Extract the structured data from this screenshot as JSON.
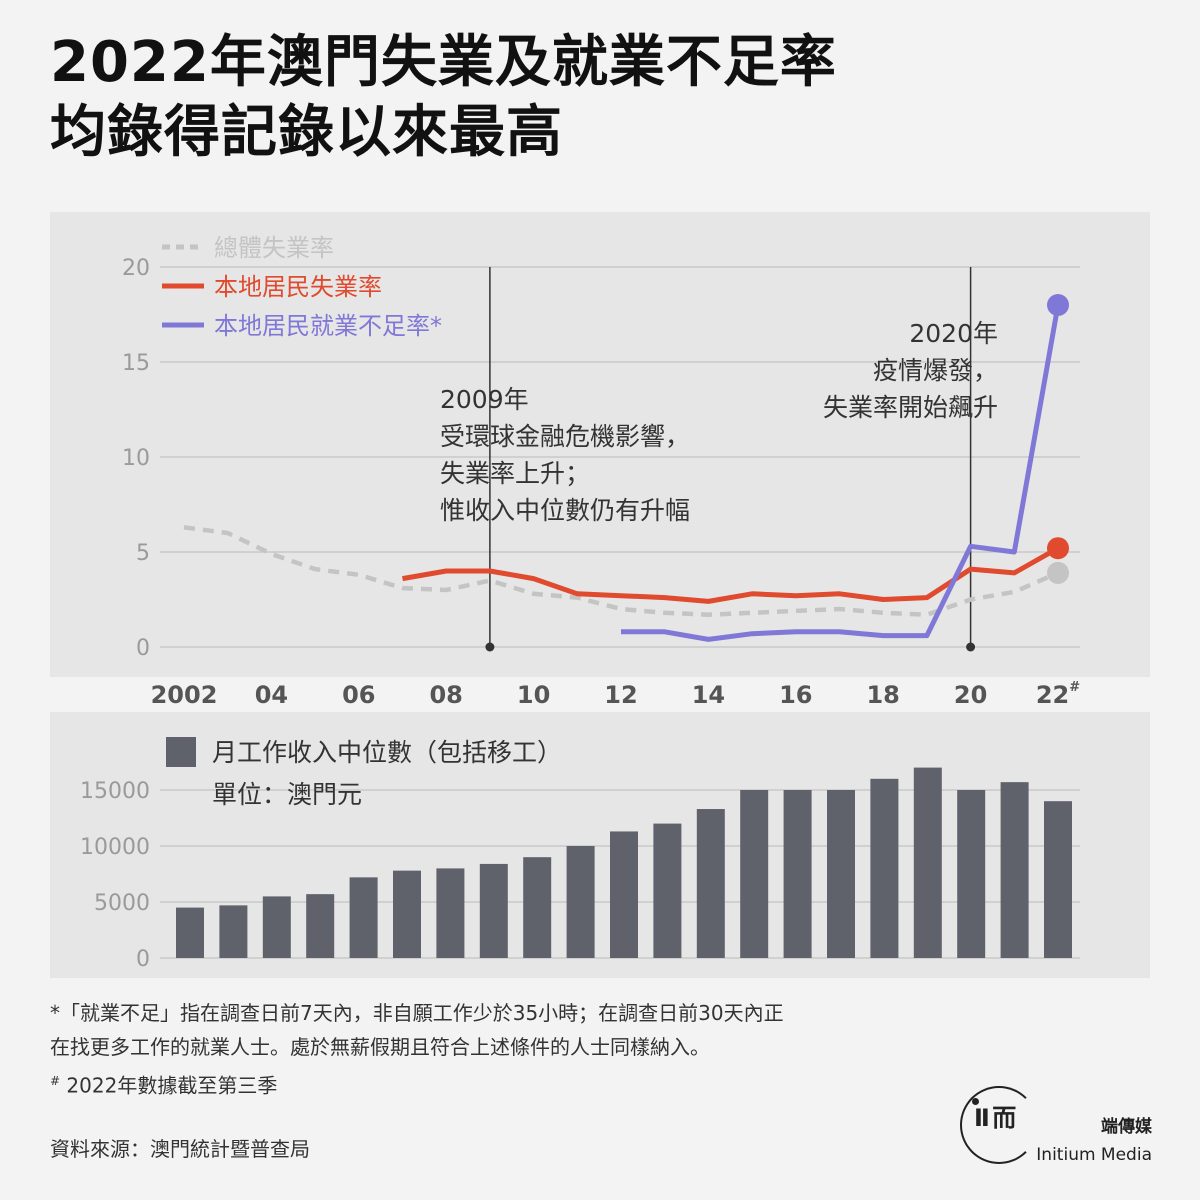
{
  "title": {
    "line1": "2022年澳門失業及就業不足率",
    "line2": "均錄得記錄以來最高"
  },
  "colors": {
    "panel_bg": "#e6e6e6",
    "overall": "#c4c4c4",
    "resident_unemployment": "#e04a2e",
    "underemployment": "#8078d6",
    "bars": "#5f616b",
    "grid": "#c9c9c9",
    "tick": "#9a9a9a",
    "xtick": "#555555"
  },
  "chart_data": [
    {
      "type": "line",
      "x_tick_labels": [
        "2002",
        "04",
        "06",
        "08",
        "10",
        "12",
        "14",
        "16",
        "18",
        "20",
        "22#"
      ],
      "x_tick_years": [
        2002,
        2004,
        2006,
        2008,
        2010,
        2012,
        2014,
        2016,
        2018,
        2020,
        2022
      ],
      "ylim": [
        0,
        20
      ],
      "y_ticks": [
        0,
        5,
        10,
        15,
        20
      ],
      "grid": true,
      "legend_position": "top-left",
      "series": [
        {
          "name": "總體失業率",
          "style": "dashed",
          "x": [
            2002,
            2003,
            2004,
            2005,
            2006,
            2007,
            2008,
            2009,
            2010,
            2011,
            2012,
            2013,
            2014,
            2015,
            2016,
            2017,
            2018,
            2019,
            2020,
            2021,
            2022
          ],
          "y": [
            6.3,
            6.0,
            4.9,
            4.1,
            3.8,
            3.1,
            3.0,
            3.5,
            2.8,
            2.6,
            2.0,
            1.8,
            1.7,
            1.8,
            1.9,
            2.0,
            1.8,
            1.7,
            2.5,
            2.9,
            3.9
          ]
        },
        {
          "name": "本地居民失業率",
          "style": "solid",
          "x": [
            2007,
            2008,
            2009,
            2010,
            2011,
            2012,
            2013,
            2014,
            2015,
            2016,
            2017,
            2018,
            2019,
            2020,
            2021,
            2022
          ],
          "y": [
            3.6,
            4.0,
            4.0,
            3.6,
            2.8,
            2.7,
            2.6,
            2.4,
            2.8,
            2.7,
            2.8,
            2.5,
            2.6,
            4.1,
            3.9,
            5.2
          ]
        },
        {
          "name": "本地居民就業不足率*",
          "style": "solid",
          "x": [
            2012,
            2013,
            2014,
            2015,
            2016,
            2017,
            2018,
            2019,
            2020,
            2021,
            2022
          ],
          "y": [
            0.8,
            0.8,
            0.4,
            0.7,
            0.8,
            0.8,
            0.6,
            0.6,
            5.3,
            5.0,
            18.0
          ]
        }
      ],
      "annotations": [
        {
          "year": 2009,
          "lines": [
            "2009年",
            "受環球金融危機影響，",
            "失業率上升；",
            "惟收入中位數仍有升幅"
          ]
        },
        {
          "year": 2020,
          "lines": [
            "2020年",
            "疫情爆發，",
            "失業率開始飆升"
          ]
        }
      ]
    },
    {
      "type": "bar",
      "title": "月工作收入中位數（包括移工）",
      "unit_label": "單位：澳門元",
      "categories": [
        2002,
        2003,
        2004,
        2005,
        2006,
        2007,
        2008,
        2009,
        2010,
        2011,
        2012,
        2013,
        2014,
        2015,
        2016,
        2017,
        2018,
        2019,
        2020,
        2021,
        2022
      ],
      "values": [
        4500,
        4700,
        5500,
        5700,
        7200,
        7800,
        8000,
        8400,
        9000,
        10000,
        11300,
        12000,
        13300,
        15000,
        15000,
        15000,
        16000,
        17000,
        15000,
        15700,
        14000
      ],
      "ylim": [
        0,
        17500
      ],
      "y_ticks": [
        0,
        5000,
        10000,
        15000
      ],
      "grid": true
    }
  ],
  "notes": {
    "underemployment_line1": "*「就業不足」指在調查日前7天內，非自願工作少於35小時；在調查日前30天內正",
    "underemployment_line2": "在找更多工作的就業人士。處於無薪假期且符合上述條件的人士同樣納入。",
    "data_cutoff_mark": "#",
    "data_cutoff": "2022年數據截至第三季"
  },
  "source": "資料來源：澳門統計暨普查局",
  "brand": {
    "logo_mark": "Ⅱ 而",
    "zh": "端傳媒",
    "en": "Initium Media"
  }
}
